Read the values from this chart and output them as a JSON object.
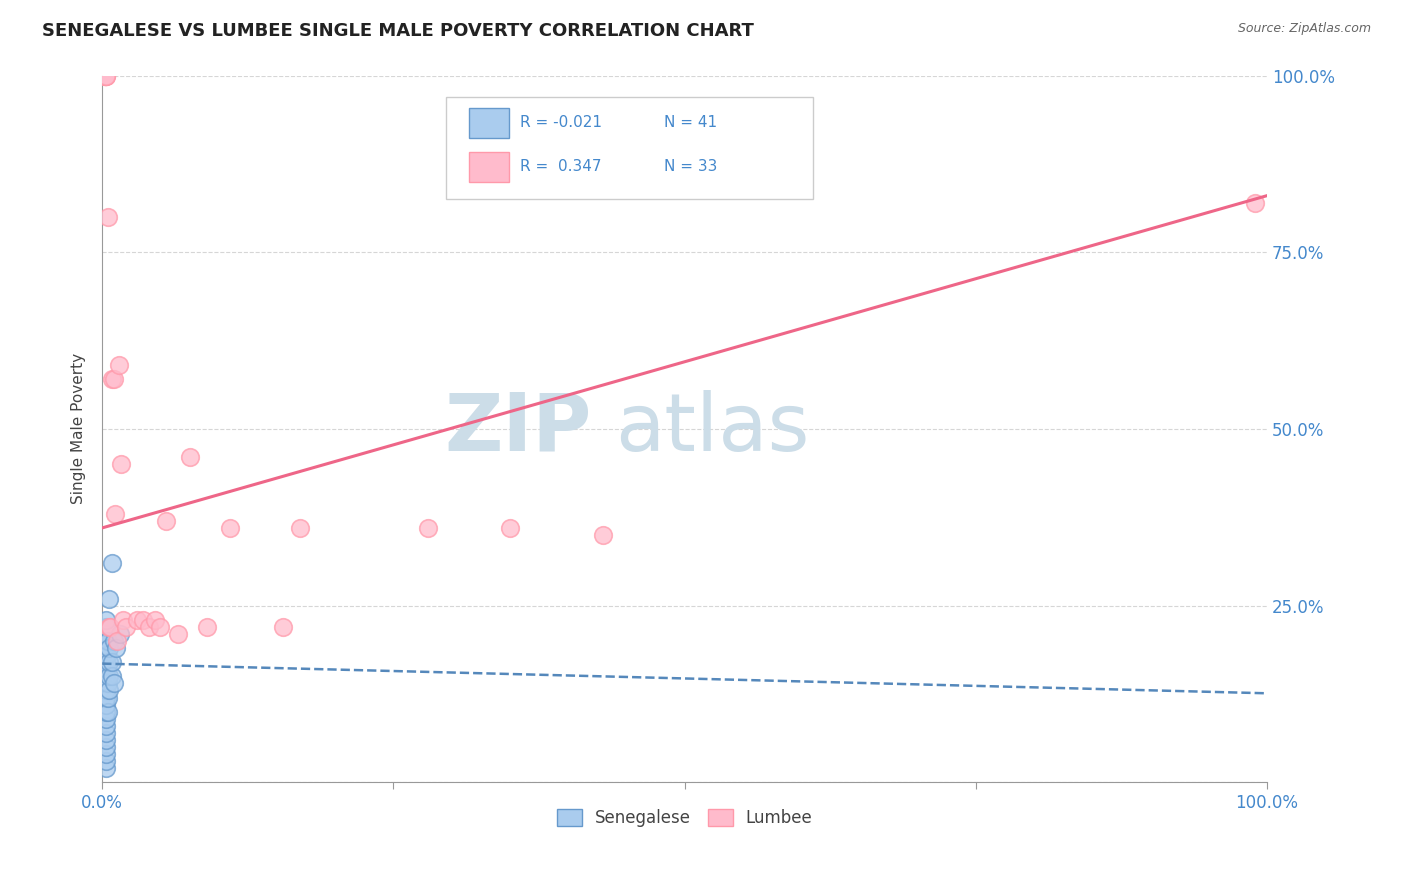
{
  "title": "SENEGALESE VS LUMBEE SINGLE MALE POVERTY CORRELATION CHART",
  "source": "Source: ZipAtlas.com",
  "ylabel": "Single Male Poverty",
  "xlim": [
    0,
    1
  ],
  "ylim": [
    0,
    1
  ],
  "xticks": [
    0.0,
    0.25,
    0.5,
    0.75,
    1.0
  ],
  "xticklabels": [
    "0.0%",
    "",
    "",
    "",
    "100.0%"
  ],
  "ytick_positions": [
    0.0,
    0.25,
    0.5,
    0.75,
    1.0
  ],
  "ytick_labels_right": [
    "",
    "25.0%",
    "50.0%",
    "75.0%",
    "100.0%"
  ],
  "legend_r_blue": "R = -0.021",
  "legend_n_blue": "N = 41",
  "legend_r_pink": "R =  0.347",
  "legend_n_pink": "N = 33",
  "blue_fill": "#AACCEE",
  "blue_edge": "#6699CC",
  "pink_fill": "#FFBBCC",
  "pink_edge": "#FF99AA",
  "blue_line_color": "#5588BB",
  "pink_line_color": "#EE6688",
  "grid_color": "#BBBBBB",
  "title_color": "#222222",
  "axis_label_color": "#444444",
  "right_tick_color": "#4488CC",
  "watermark_color": "#CCDDE8",
  "background_color": "#FFFFFF",
  "senegalese_x": [
    0.003,
    0.003,
    0.003,
    0.003,
    0.003,
    0.003,
    0.003,
    0.003,
    0.003,
    0.003,
    0.003,
    0.003,
    0.003,
    0.003,
    0.003,
    0.003,
    0.003,
    0.003,
    0.003,
    0.003,
    0.003,
    0.003,
    0.004,
    0.004,
    0.004,
    0.005,
    0.005,
    0.005,
    0.005,
    0.006,
    0.006,
    0.006,
    0.006,
    0.006,
    0.008,
    0.008,
    0.008,
    0.01,
    0.01,
    0.012,
    0.015
  ],
  "senegalese_y": [
    0.02,
    0.03,
    0.04,
    0.05,
    0.06,
    0.07,
    0.08,
    0.09,
    0.1,
    0.11,
    0.12,
    0.13,
    0.14,
    0.15,
    0.16,
    0.17,
    0.18,
    0.19,
    0.2,
    0.21,
    0.22,
    0.23,
    0.14,
    0.16,
    0.18,
    0.1,
    0.12,
    0.14,
    0.2,
    0.13,
    0.15,
    0.17,
    0.19,
    0.26,
    0.15,
    0.17,
    0.31,
    0.14,
    0.2,
    0.19,
    0.21
  ],
  "lumbee_x": [
    0.002,
    0.002,
    0.002,
    0.003,
    0.003,
    0.003,
    0.005,
    0.006,
    0.007,
    0.008,
    0.01,
    0.011,
    0.013,
    0.014,
    0.016,
    0.018,
    0.02,
    0.03,
    0.035,
    0.04,
    0.045,
    0.05,
    0.055,
    0.065,
    0.075,
    0.09,
    0.11,
    0.155,
    0.17,
    0.28,
    0.35,
    0.43,
    0.99
  ],
  "lumbee_y": [
    1.0,
    1.0,
    1.0,
    1.0,
    1.0,
    1.0,
    0.8,
    0.22,
    0.22,
    0.57,
    0.57,
    0.38,
    0.2,
    0.59,
    0.45,
    0.23,
    0.22,
    0.23,
    0.23,
    0.22,
    0.23,
    0.22,
    0.37,
    0.21,
    0.46,
    0.22,
    0.36,
    0.22,
    0.36,
    0.36,
    0.36,
    0.35,
    0.82
  ],
  "blue_trend_x": [
    0.0,
    1.0
  ],
  "blue_trend_y_start": 0.168,
  "blue_trend_y_end": 0.126,
  "pink_trend_x": [
    0.0,
    1.0
  ],
  "pink_trend_y_start": 0.36,
  "pink_trend_y_end": 0.83
}
